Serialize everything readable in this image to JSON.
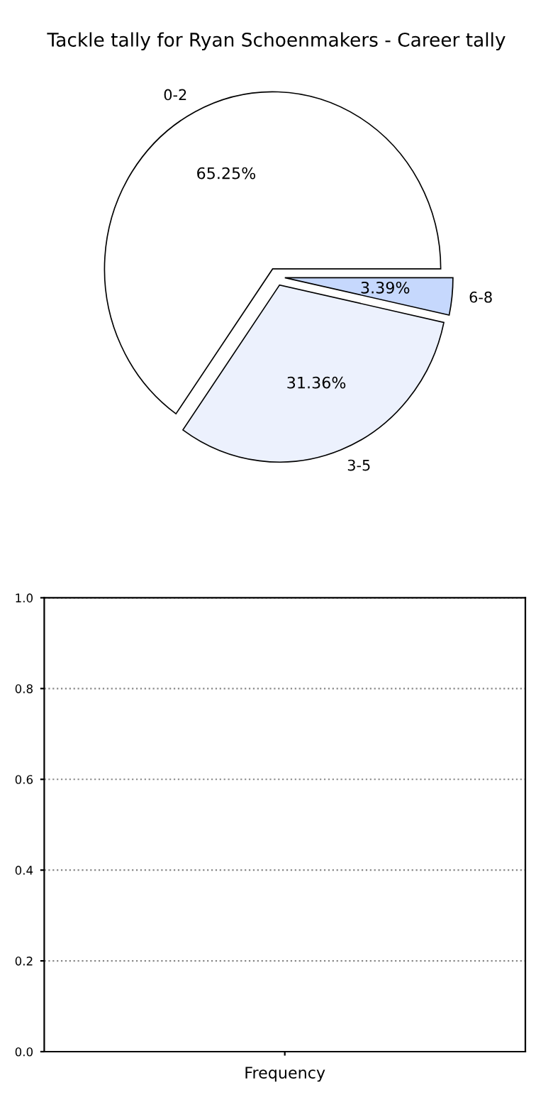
{
  "chart_data": [
    {
      "type": "pie",
      "title": "Tackle tally for Ryan Schoenmakers - Career tally",
      "categories": [
        "0-2",
        "3-5",
        "6-8"
      ],
      "values": [
        65.25,
        31.36,
        3.39
      ],
      "colors": [
        "#ffffff",
        "#ecf1fd",
        "#c6d8fd"
      ],
      "value_labels": [
        "65.25%",
        "31.36%",
        "3.39%"
      ]
    },
    {
      "type": "bar",
      "categories": [
        null
      ],
      "values": [
        null
      ],
      "xlabel": "Frequency",
      "ylim": [
        0,
        1.0
      ],
      "yticks": [
        {
          "value": 0,
          "label": "0.0"
        },
        {
          "value": 0.2,
          "label": "0.2"
        },
        {
          "value": 0.4,
          "label": "0.4"
        },
        {
          "value": 0.6,
          "label": "0.6"
        },
        {
          "value": 0.8,
          "label": "0.8"
        },
        {
          "value": 1.0,
          "label": "1.0"
        }
      ],
      "grid": "y"
    }
  ]
}
